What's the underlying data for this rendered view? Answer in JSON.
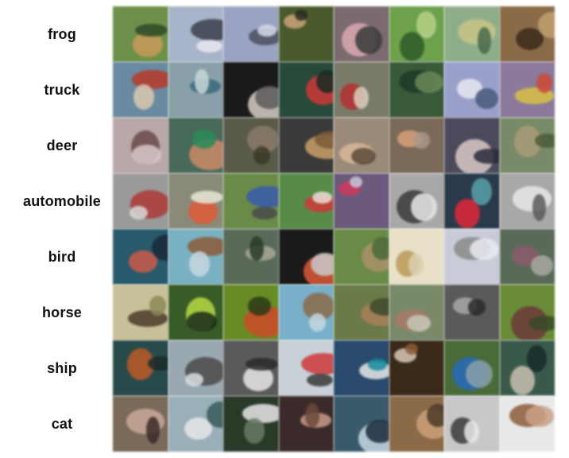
{
  "rows": [
    {
      "label": "frog",
      "tiles": [
        {
          "bg": "#6d8f4c",
          "a": "#c79a5a",
          "b": "#2f4a2a"
        },
        {
          "bg": "#a8b4c8",
          "a": "#3b3f4a",
          "b": "#e6e8ee"
        },
        {
          "bg": "#9aa3c0",
          "a": "#4b5060",
          "b": "#d8dbe6"
        },
        {
          "bg": "#4a5a2f",
          "a": "#c9a27a",
          "b": "#2a2a22"
        },
        {
          "bg": "#7a6a70",
          "a": "#d9a8b0",
          "b": "#3a3a3a"
        },
        {
          "bg": "#6fa04f",
          "a": "#2f5a2a",
          "b": "#b8d08a"
        },
        {
          "bg": "#8fae8a",
          "a": "#c8c48a",
          "b": "#4a6a4a"
        },
        {
          "bg": "#8a6a4a",
          "a": "#3a2a1a",
          "b": "#c0a070"
        }
      ]
    },
    {
      "label": "truck",
      "tiles": [
        {
          "bg": "#6a8aa0",
          "a": "#b33a2a",
          "b": "#d8c8b0"
        },
        {
          "bg": "#8aa0a8",
          "a": "#3a6a7a",
          "b": "#c8d8d8"
        },
        {
          "bg": "#1a1a1a",
          "a": "#d8d0c8",
          "b": "#5a5a5a"
        },
        {
          "bg": "#2a4a3a",
          "a": "#c83a3a",
          "b": "#1a2a22"
        },
        {
          "bg": "#7a7a6a",
          "a": "#b03030",
          "b": "#d8d0c0"
        },
        {
          "bg": "#3a5a3a",
          "a": "#1f3a2a",
          "b": "#6a8a5a"
        },
        {
          "bg": "#9aa0c8",
          "a": "#e8e8f0",
          "b": "#4a5a7a"
        },
        {
          "bg": "#8a7a9a",
          "a": "#d8c04a",
          "b": "#c84a3a"
        }
      ]
    },
    {
      "label": "deer",
      "tiles": [
        {
          "bg": "#b8a8a8",
          "a": "#6a4a4a",
          "b": "#d8c8c8"
        },
        {
          "bg": "#4a6a5a",
          "a": "#c88a6a",
          "b": "#2a8a5a"
        },
        {
          "bg": "#5a5a4a",
          "a": "#8a7a6a",
          "b": "#3a3a2a"
        },
        {
          "bg": "#3a3a3a",
          "a": "#c8a06a",
          "b": "#7a5a3a"
        },
        {
          "bg": "#9a8a7a",
          "a": "#d8b89a",
          "b": "#5a4a3a"
        },
        {
          "bg": "#7a6a5a",
          "a": "#d8a07a",
          "b": "#a8988a"
        },
        {
          "bg": "#4a4a5a",
          "a": "#d8c8c8",
          "b": "#2a2a3a"
        },
        {
          "bg": "#7a8a6a",
          "a": "#a89a7a",
          "b": "#4a5a3a"
        }
      ]
    },
    {
      "label": "automobile",
      "tiles": [
        {
          "bg": "#9a9a9a",
          "a": "#a83a3a",
          "b": "#d8d8d8"
        },
        {
          "bg": "#8a8a7a",
          "a": "#d85a3a",
          "b": "#e8e8d8"
        },
        {
          "bg": "#6a8a4a",
          "a": "#3a5aa8",
          "b": "#4a4a4a"
        },
        {
          "bg": "#5a8a4a",
          "a": "#c83a3a",
          "b": "#e8e0d8"
        },
        {
          "bg": "#6a5a7a",
          "a": "#c83a5a",
          "b": "#c8c8d8"
        },
        {
          "bg": "#a8a8a8",
          "a": "#3a3a3a",
          "b": "#e8e8e8"
        },
        {
          "bg": "#2a3a4a",
          "a": "#d82a3a",
          "b": "#5aa0a8"
        },
        {
          "bg": "#a8a8a8",
          "a": "#e8e8e8",
          "b": "#5a5a5a"
        }
      ]
    },
    {
      "label": "bird",
      "tiles": [
        {
          "bg": "#2a5a6a",
          "a": "#c85a4a",
          "b": "#1a2a3a"
        },
        {
          "bg": "#7ab0c0",
          "a": "#8a5a3a",
          "b": "#c8d8e0"
        },
        {
          "bg": "#5a6a5a",
          "a": "#a8a89a",
          "b": "#2a3a2a"
        },
        {
          "bg": "#1a1a1a",
          "a": "#d85a3a",
          "b": "#c8c8c8"
        },
        {
          "bg": "#6a8a4a",
          "a": "#a8906a",
          "b": "#4a6a3a"
        },
        {
          "bg": "#e8e0c8",
          "a": "#b89a5a",
          "b": "#d8d0b0"
        },
        {
          "bg": "#c8ccd8",
          "a": "#8a8a8a",
          "b": "#e8eaf0"
        },
        {
          "bg": "#5a6a5a",
          "a": "#8a5a6a",
          "b": "#a8a8a0"
        }
      ]
    },
    {
      "label": "horse",
      "tiles": [
        {
          "bg": "#c8c09a",
          "a": "#4a3a2a",
          "b": "#8a8a5a"
        },
        {
          "bg": "#3a5a2a",
          "a": "#b8d84a",
          "b": "#1a2a1a"
        },
        {
          "bg": "#6a8a2a",
          "a": "#c84a2a",
          "b": "#2a3a1a"
        },
        {
          "bg": "#7ab0c8",
          "a": "#8a6a4a",
          "b": "#c8d8e0"
        },
        {
          "bg": "#6a7a4a",
          "a": "#a8805a",
          "b": "#3a4a2a"
        },
        {
          "bg": "#7a8a6a",
          "a": "#a8786a",
          "b": "#c8c8b8"
        },
        {
          "bg": "#5a5a5a",
          "a": "#a8a8a8",
          "b": "#2a2a2a"
        },
        {
          "bg": "#6a8a3a",
          "a": "#6a3a3a",
          "b": "#3a4a2a"
        }
      ]
    },
    {
      "label": "ship",
      "tiles": [
        {
          "bg": "#2a4a4a",
          "a": "#b85a2a",
          "b": "#1a2a2a"
        },
        {
          "bg": "#9aa8b0",
          "a": "#4a4a4a",
          "b": "#d8dce0"
        },
        {
          "bg": "#5a5a5a",
          "a": "#e8e8e8",
          "b": "#2a2a2a"
        },
        {
          "bg": "#c8d0d8",
          "a": "#c83a3a",
          "b": "#3a3a3a"
        },
        {
          "bg": "#2a4a6a",
          "a": "#e8e8e8",
          "b": "#1a8a9a"
        },
        {
          "bg": "#3a2a1a",
          "a": "#d8c8b8",
          "b": "#8a5a3a"
        },
        {
          "bg": "#4a6a3a",
          "a": "#2a6ab8",
          "b": "#8aa0a8"
        },
        {
          "bg": "#3a5a4a",
          "a": "#c8c0b0",
          "b": "#1a2a2a"
        }
      ]
    },
    {
      "label": "cat",
      "tiles": [
        {
          "bg": "#7a6a5a",
          "a": "#c8a89a",
          "b": "#3a2a2a"
        },
        {
          "bg": "#9ab0b8",
          "a": "#e8e8e8",
          "b": "#3a5a5a"
        },
        {
          "bg": "#2a3a2a",
          "a": "#e8e8e8",
          "b": "#6a7a6a"
        },
        {
          "bg": "#3a2a2a",
          "a": "#c89a8a",
          "b": "#6a4a3a"
        },
        {
          "bg": "#3a5a6a",
          "a": "#c8d8e0",
          "b": "#1a2a3a"
        },
        {
          "bg": "#8a6a4a",
          "a": "#c8a07a",
          "b": "#4a3a2a"
        },
        {
          "bg": "#c8c8c8",
          "a": "#3a3a3a",
          "b": "#e8e8e8"
        },
        {
          "bg": "#e8e8e8",
          "a": "#8a5a3a",
          "b": "#c8a08a"
        }
      ]
    }
  ]
}
